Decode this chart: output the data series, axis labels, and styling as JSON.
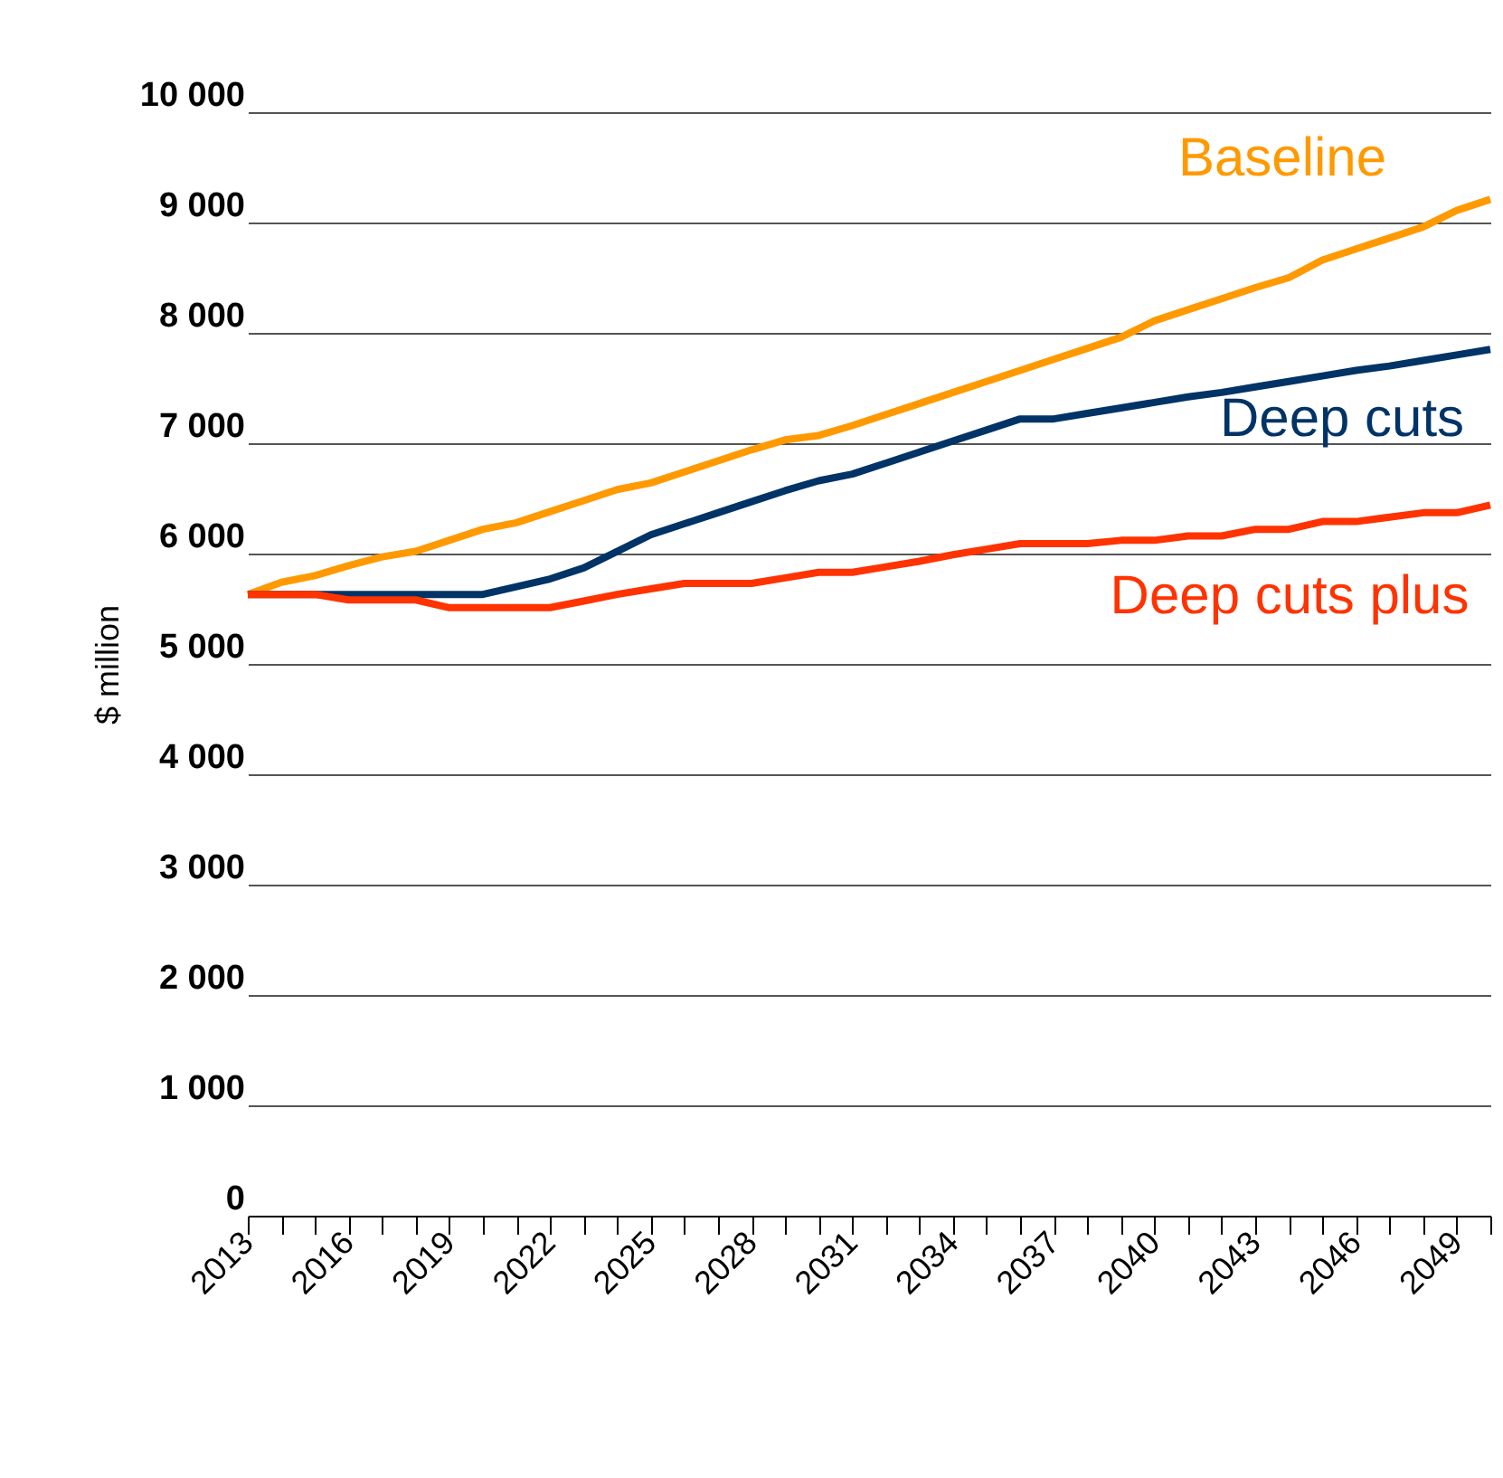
{
  "chart_data": {
    "type": "line",
    "ylabel": "$ million",
    "x": [
      2013,
      2014,
      2015,
      2016,
      2017,
      2018,
      2019,
      2020,
      2021,
      2022,
      2023,
      2024,
      2025,
      2026,
      2027,
      2028,
      2029,
      2030,
      2031,
      2032,
      2033,
      2034,
      2035,
      2036,
      2037,
      2038,
      2039,
      2040,
      2041,
      2042,
      2043,
      2044,
      2045,
      2046,
      2047,
      2048,
      2049,
      2050
    ],
    "series": [
      {
        "name": "Baseline",
        "color": "#ff9900",
        "values": [
          5630,
          5740,
          5800,
          5890,
          5970,
          6020,
          6120,
          6220,
          6280,
          6380,
          6480,
          6580,
          6640,
          6740,
          6840,
          6940,
          7030,
          7070,
          7160,
          7260,
          7360,
          7460,
          7560,
          7660,
          7760,
          7860,
          7960,
          8110,
          8210,
          8310,
          8410,
          8500,
          8660,
          8760,
          8860,
          8960,
          9110,
          9210
        ]
      },
      {
        "name": "Deep cuts",
        "color": "#003366",
        "values": [
          5630,
          5630,
          5630,
          5630,
          5630,
          5630,
          5630,
          5630,
          5700,
          5770,
          5870,
          6020,
          6170,
          6270,
          6370,
          6470,
          6570,
          6660,
          6720,
          6820,
          6920,
          7020,
          7120,
          7220,
          7220,
          7270,
          7320,
          7370,
          7420,
          7460,
          7510,
          7560,
          7610,
          7660,
          7700,
          7750,
          7800,
          7850
        ]
      },
      {
        "name": "Deep cuts plus",
        "color": "#ff3300",
        "values": [
          5630,
          5630,
          5630,
          5580,
          5580,
          5580,
          5510,
          5510,
          5510,
          5510,
          5570,
          5630,
          5680,
          5730,
          5730,
          5730,
          5780,
          5830,
          5830,
          5880,
          5930,
          5990,
          6040,
          6090,
          6090,
          6090,
          6120,
          6120,
          6160,
          6160,
          6220,
          6220,
          6290,
          6290,
          6330,
          6370,
          6370,
          6440
        ]
      }
    ],
    "xlim": [
      2013,
      2050
    ],
    "xticks": [
      2013,
      {
        "value": 2014,
        "label": null
      },
      {
        "value": 2015,
        "label": null
      },
      2016,
      {
        "value": 2017,
        "label": null
      },
      {
        "value": 2018,
        "label": null
      },
      2019,
      {
        "value": 2020,
        "label": null
      },
      {
        "value": 2021,
        "label": null
      },
      2022,
      {
        "value": 2023,
        "label": null
      },
      {
        "value": 2024,
        "label": null
      },
      2025,
      {
        "value": 2026,
        "label": null
      },
      {
        "value": 2027,
        "label": null
      },
      2028,
      {
        "value": 2029,
        "label": null
      },
      {
        "value": 2030,
        "label": null
      },
      2031,
      {
        "value": 2032,
        "label": null
      },
      {
        "value": 2033,
        "label": null
      },
      2034,
      {
        "value": 2035,
        "label": null
      },
      {
        "value": 2036,
        "label": null
      },
      2037,
      {
        "value": 2038,
        "label": null
      },
      {
        "value": 2039,
        "label": null
      },
      2040,
      {
        "value": 2041,
        "label": null
      },
      {
        "value": 2042,
        "label": null
      },
      2043,
      {
        "value": 2044,
        "label": null
      },
      {
        "value": 2045,
        "label": null
      },
      2046,
      {
        "value": 2047,
        "label": null
      },
      {
        "value": 2048,
        "label": null
      },
      2049,
      {
        "value": 2050,
        "label": null
      }
    ],
    "ylim": [
      0,
      10000
    ],
    "yticks": [
      0,
      {
        "value": 1000,
        "label": "1 000"
      },
      {
        "value": 2000,
        "label": "2 000"
      },
      {
        "value": 3000,
        "label": "3 000"
      },
      {
        "value": 4000,
        "label": "4 000"
      },
      {
        "value": 5000,
        "label": "5 000"
      },
      {
        "value": 6000,
        "label": "6 000"
      },
      {
        "value": 7000,
        "label": "7 000"
      },
      {
        "value": 8000,
        "label": "8 000"
      },
      {
        "value": 9000,
        "label": "9 000"
      },
      {
        "value": 10000,
        "label": "10 000"
      }
    ],
    "grid": "y",
    "marker": "none",
    "line_style": "solid"
  }
}
